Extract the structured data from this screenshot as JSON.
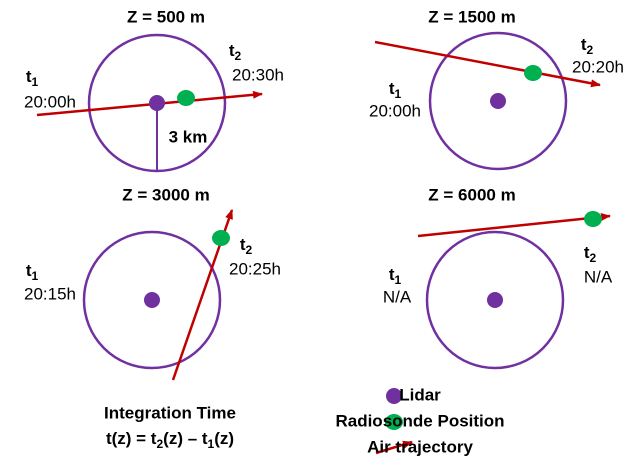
{
  "panels": [
    {
      "title": "Z = 500 m",
      "t1": {
        "label": "t",
        "sub": "1",
        "time": "20:00h"
      },
      "t2": {
        "label": "t",
        "sub": "2",
        "time": "20:30h"
      },
      "radius_label": "3 km"
    },
    {
      "title": "Z = 1500 m",
      "t1": {
        "label": "t",
        "sub": "1",
        "time": "20:00h"
      },
      "t2": {
        "label": "t",
        "sub": "2",
        "time": "20:20h"
      }
    },
    {
      "title": "Z = 3000 m",
      "t1": {
        "label": "t",
        "sub": "1",
        "time": "20:15h"
      },
      "t2": {
        "label": "t",
        "sub": "2",
        "time": "20:25h"
      }
    },
    {
      "title": "Z = 6000 m",
      "t1": {
        "label": "t",
        "sub": "1",
        "time": "N/A"
      },
      "t2": {
        "label": "t",
        "sub": "2",
        "time": "N/A"
      }
    }
  ],
  "legend": [
    "Lidar",
    "Radiosonde Position",
    "Air trajectory"
  ],
  "footer": {
    "title": "Integration Time",
    "formula": [
      "t(z) = t",
      "2",
      "(z) – t",
      "1",
      "(z)"
    ]
  }
}
